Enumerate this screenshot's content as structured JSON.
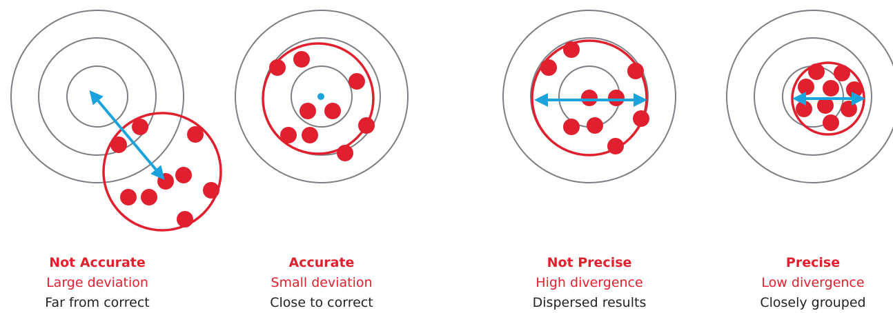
{
  "colors": {
    "ring": "#7b7f85",
    "shot": "#e0202e",
    "arrow": "#1aa3dc",
    "caption_accent": "#e0202e",
    "caption_text": "#222222"
  },
  "panels": [
    {
      "id": "not-accurate",
      "title": "Not Accurate",
      "subtitle": "Large deviation",
      "description": "Far from correct",
      "indicator": "deviation-arrow"
    },
    {
      "id": "accurate",
      "title": "Accurate",
      "subtitle": "Small deviation",
      "description": "Close to correct",
      "indicator": "center-dot"
    },
    {
      "id": "not-precise",
      "title": "Not Precise",
      "subtitle": "High divergence",
      "description": "Dispersed results",
      "indicator": "divergence-arrow"
    },
    {
      "id": "precise",
      "title": "Precise",
      "subtitle": "Low divergence",
      "description": "Closely grouped",
      "indicator": "divergence-arrow"
    }
  ]
}
